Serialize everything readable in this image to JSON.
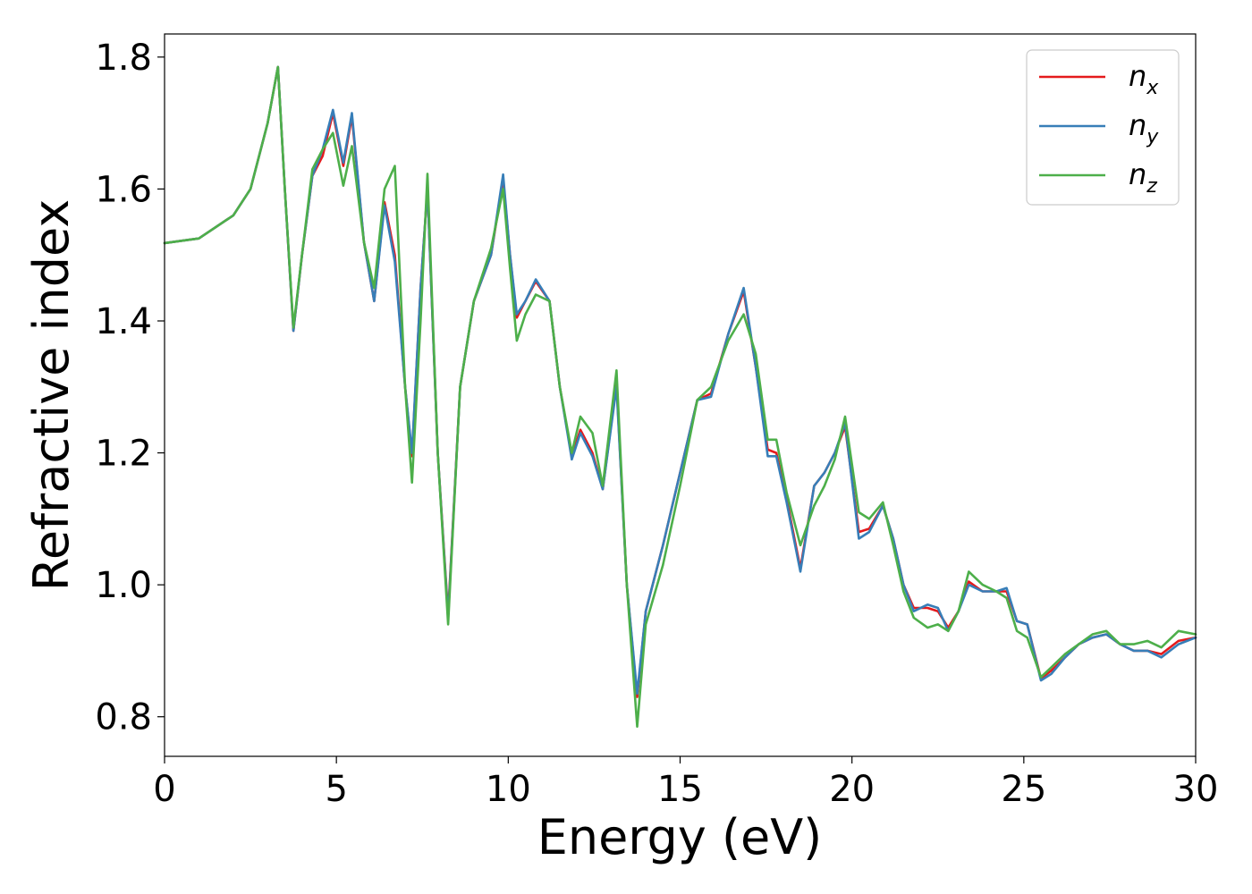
{
  "chart_data": {
    "type": "line",
    "xlabel": "Energy (eV)",
    "ylabel": "Refractive index",
    "xlim": [
      0,
      30
    ],
    "ylim": [
      0.74,
      1.835
    ],
    "xticks": [
      0,
      5,
      10,
      15,
      20,
      25,
      30
    ],
    "xtick_labels": [
      "0",
      "5",
      "10",
      "15",
      "20",
      "25",
      "30"
    ],
    "yticks": [
      0.8,
      1.0,
      1.2,
      1.4,
      1.6,
      1.8
    ],
    "ytick_labels": [
      "0.8",
      "1.0",
      "1.2",
      "1.4",
      "1.6",
      "1.8"
    ],
    "grid": false,
    "legend_position": "top-right",
    "series": [
      {
        "name": "n_x",
        "label_main": "n",
        "label_sub": "x",
        "color": "#e41a1c",
        "x": [
          0,
          1,
          2,
          2.5,
          3,
          3.3,
          3.5,
          3.75,
          4.0,
          4.3,
          4.6,
          4.9,
          5.2,
          5.45,
          5.8,
          6.1,
          6.4,
          6.7,
          7.0,
          7.2,
          7.45,
          7.65,
          7.95,
          8.25,
          8.6,
          9.0,
          9.5,
          9.85,
          10.05,
          10.25,
          10.5,
          10.8,
          11.2,
          11.5,
          11.85,
          12.1,
          12.45,
          12.75,
          13.15,
          13.45,
          13.75,
          14.0,
          14.5,
          15.0,
          15.5,
          15.9,
          16.4,
          16.85,
          17.2,
          17.55,
          17.8,
          18.1,
          18.5,
          18.9,
          19.2,
          19.5,
          19.8,
          20.2,
          20.5,
          20.9,
          21.2,
          21.5,
          21.8,
          22.2,
          22.5,
          22.8,
          23.1,
          23.4,
          23.8,
          24.2,
          24.5,
          24.8,
          25.1,
          25.5,
          25.8,
          26.2,
          26.6,
          27.0,
          27.4,
          27.8,
          28.2,
          28.6,
          29.0,
          29.5,
          30.0
        ],
        "y": [
          1.518,
          1.525,
          1.56,
          1.6,
          1.7,
          1.785,
          1.6,
          1.385,
          1.5,
          1.62,
          1.65,
          1.715,
          1.635,
          1.71,
          1.52,
          1.43,
          1.58,
          1.5,
          1.3,
          1.195,
          1.45,
          1.6,
          1.2,
          0.955,
          1.3,
          1.43,
          1.5,
          1.615,
          1.5,
          1.405,
          1.43,
          1.46,
          1.43,
          1.3,
          1.195,
          1.235,
          1.2,
          1.145,
          1.305,
          1.0,
          0.83,
          0.96,
          1.06,
          1.17,
          1.28,
          1.29,
          1.38,
          1.445,
          1.33,
          1.205,
          1.2,
          1.13,
          1.025,
          1.15,
          1.17,
          1.2,
          1.24,
          1.08,
          1.085,
          1.12,
          1.07,
          1.0,
          0.965,
          0.965,
          0.96,
          0.935,
          0.96,
          1.005,
          0.99,
          0.99,
          0.99,
          0.945,
          0.94,
          0.858,
          0.87,
          0.89,
          0.91,
          0.92,
          0.925,
          0.91,
          0.9,
          0.9,
          0.895,
          0.915,
          0.92
        ]
      },
      {
        "name": "n_y",
        "label_main": "n",
        "label_sub": "y",
        "color": "#377eb8",
        "x": [
          0,
          1,
          2,
          2.5,
          3,
          3.3,
          3.5,
          3.75,
          4.0,
          4.3,
          4.6,
          4.9,
          5.2,
          5.45,
          5.8,
          6.1,
          6.4,
          6.7,
          7.0,
          7.2,
          7.45,
          7.65,
          7.95,
          8.25,
          8.6,
          9.0,
          9.5,
          9.85,
          10.05,
          10.25,
          10.5,
          10.8,
          11.2,
          11.5,
          11.85,
          12.1,
          12.45,
          12.75,
          13.15,
          13.45,
          13.75,
          14.0,
          14.5,
          15.0,
          15.5,
          15.9,
          16.4,
          16.85,
          17.2,
          17.55,
          17.8,
          18.1,
          18.5,
          18.9,
          19.2,
          19.5,
          19.8,
          20.2,
          20.5,
          20.9,
          21.2,
          21.5,
          21.8,
          22.2,
          22.5,
          22.8,
          23.1,
          23.4,
          23.8,
          24.2,
          24.5,
          24.8,
          25.1,
          25.5,
          25.8,
          26.2,
          26.6,
          27.0,
          27.4,
          27.8,
          28.2,
          28.6,
          29.0,
          29.5,
          30.0
        ],
        "y": [
          1.518,
          1.525,
          1.56,
          1.6,
          1.7,
          1.785,
          1.6,
          1.385,
          1.5,
          1.62,
          1.66,
          1.72,
          1.64,
          1.715,
          1.52,
          1.43,
          1.575,
          1.49,
          1.3,
          1.2,
          1.45,
          1.6,
          1.2,
          0.95,
          1.3,
          1.43,
          1.5,
          1.622,
          1.5,
          1.41,
          1.43,
          1.463,
          1.43,
          1.3,
          1.19,
          1.23,
          1.195,
          1.145,
          1.3,
          1.0,
          0.835,
          0.96,
          1.06,
          1.17,
          1.28,
          1.285,
          1.38,
          1.45,
          1.33,
          1.195,
          1.195,
          1.125,
          1.02,
          1.15,
          1.17,
          1.2,
          1.245,
          1.07,
          1.08,
          1.12,
          1.07,
          1.0,
          0.96,
          0.97,
          0.965,
          0.93,
          0.96,
          1.0,
          0.99,
          0.99,
          0.995,
          0.945,
          0.94,
          0.855,
          0.865,
          0.89,
          0.91,
          0.92,
          0.925,
          0.91,
          0.9,
          0.9,
          0.89,
          0.91,
          0.92
        ]
      },
      {
        "name": "n_z",
        "label_main": "n",
        "label_sub": "z",
        "color": "#4daf4a",
        "x": [
          0,
          1,
          2,
          2.5,
          3,
          3.3,
          3.5,
          3.75,
          4.0,
          4.3,
          4.6,
          4.9,
          5.2,
          5.45,
          5.8,
          6.1,
          6.4,
          6.7,
          7.0,
          7.2,
          7.45,
          7.65,
          7.95,
          8.25,
          8.6,
          9.0,
          9.5,
          9.85,
          10.05,
          10.25,
          10.5,
          10.8,
          11.2,
          11.5,
          11.85,
          12.1,
          12.45,
          12.75,
          13.15,
          13.45,
          13.75,
          14.0,
          14.5,
          15.0,
          15.5,
          15.9,
          16.4,
          16.85,
          17.2,
          17.55,
          17.8,
          18.1,
          18.5,
          18.9,
          19.2,
          19.5,
          19.8,
          20.2,
          20.5,
          20.9,
          21.2,
          21.5,
          21.8,
          22.2,
          22.5,
          22.8,
          23.1,
          23.4,
          23.8,
          24.2,
          24.5,
          24.8,
          25.1,
          25.5,
          25.8,
          26.2,
          26.6,
          27.0,
          27.4,
          27.8,
          28.2,
          28.6,
          29.0,
          29.5,
          30.0
        ],
        "y": [
          1.518,
          1.525,
          1.56,
          1.6,
          1.7,
          1.785,
          1.6,
          1.39,
          1.5,
          1.63,
          1.66,
          1.685,
          1.605,
          1.665,
          1.52,
          1.45,
          1.6,
          1.635,
          1.3,
          1.155,
          1.4,
          1.623,
          1.2,
          0.94,
          1.3,
          1.43,
          1.51,
          1.6,
          1.48,
          1.37,
          1.41,
          1.44,
          1.43,
          1.3,
          1.2,
          1.255,
          1.23,
          1.15,
          1.325,
          1.0,
          0.785,
          0.94,
          1.03,
          1.15,
          1.28,
          1.3,
          1.37,
          1.41,
          1.35,
          1.22,
          1.22,
          1.14,
          1.06,
          1.12,
          1.15,
          1.19,
          1.255,
          1.11,
          1.1,
          1.125,
          1.06,
          0.99,
          0.95,
          0.935,
          0.94,
          0.93,
          0.96,
          1.02,
          1.0,
          0.99,
          0.98,
          0.93,
          0.92,
          0.86,
          0.875,
          0.895,
          0.91,
          0.925,
          0.93,
          0.91,
          0.91,
          0.915,
          0.905,
          0.93,
          0.925
        ]
      }
    ]
  }
}
